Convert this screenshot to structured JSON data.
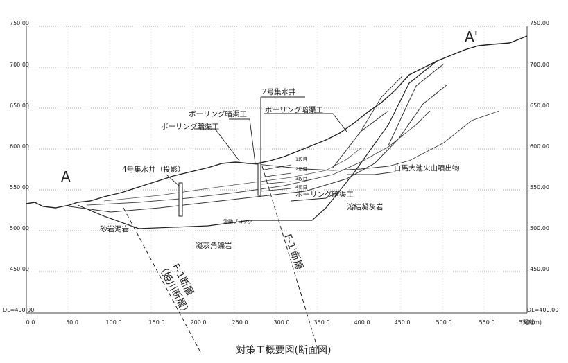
{
  "section_letters": {
    "left": "A",
    "right": "A'"
  },
  "y_axis": {
    "ticks_left": [
      "750.00",
      "700.00",
      "650.00",
      "600.00",
      "550.00",
      "500.00",
      "450.00",
      "DL=400.00"
    ],
    "ticks_right": [
      "750.00",
      "700.00",
      "650.00",
      "600.00",
      "550.00",
      "500.00",
      "450.00",
      "DL=400.00"
    ]
  },
  "x_axis": {
    "ticks": [
      "0.0",
      "50.0",
      "100.0",
      "150.0",
      "200.0",
      "250.0",
      "300.0",
      "350.0",
      "400.0",
      "450.0",
      "500.0",
      "550.0",
      "600.0"
    ],
    "unit_label": "(距離m)"
  },
  "labels": {
    "well2": "2号集水井",
    "drain_a": "ボーリング暗渠工",
    "drain_b": "ボーリング暗渠工",
    "drain_c": "ボーリング暗渠工",
    "drain_d": "ボーリング暗渠工",
    "well4": "4号集水井（投影）",
    "shirataka": "白馬大池火山噴出物",
    "welded_tuff": "溶結凝灰岩",
    "sandstone": "砂岩泥岩",
    "tuff_breccia": "凝灰角礫岩",
    "slide_block": "滑動ブロック",
    "step1": "1段目",
    "step2": "2段目",
    "step3": "3段目",
    "step4": "4段目",
    "fault_f1": "F-1断層",
    "fault_f1_alt": "（姫川断層）",
    "fault_f1p": "F-1'断層"
  },
  "caption": "対策工概要図(断面図)"
}
